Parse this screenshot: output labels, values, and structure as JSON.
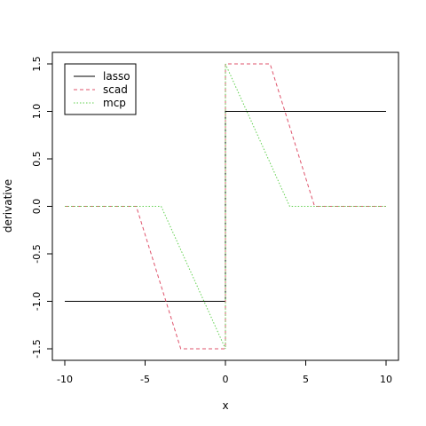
{
  "chart_data": {
    "type": "line",
    "title": "",
    "xlabel": "x",
    "ylabel": "derivative",
    "xlim": [
      -10,
      10
    ],
    "ylim": [
      -1.5,
      1.5
    ],
    "xticks": [
      -10,
      -5,
      0,
      5,
      10
    ],
    "yticks": [
      -1.5,
      -1.0,
      -0.5,
      0.0,
      0.5,
      1.0,
      1.5
    ],
    "xtick_labels": [
      "-10",
      "-5",
      "0",
      "5",
      "10"
    ],
    "ytick_labels": [
      "-1.5",
      "-1.0",
      "-0.5",
      "0.0",
      "0.5",
      "1.0",
      "1.5"
    ],
    "grid": false,
    "legend_position": "top-left",
    "series": [
      {
        "name": "lasso",
        "color": "#000000",
        "dash": "solid",
        "x": [
          -10,
          0,
          0,
          10
        ],
        "y": [
          -1,
          -1,
          1,
          1
        ]
      },
      {
        "name": "scad",
        "color": "#df536b",
        "dash": "dashed",
        "x": [
          -10,
          -5.55,
          -2.78,
          -1.5,
          0,
          0,
          1.5,
          2.78,
          5.55,
          10
        ],
        "y": [
          0,
          0,
          -1.5,
          -1.5,
          -1.5,
          1.5,
          1.5,
          1.5,
          0,
          0
        ]
      },
      {
        "name": "mcp",
        "color": "#61d04f",
        "dash": "dotted",
        "x": [
          -10,
          -4,
          0,
          0,
          4,
          10
        ],
        "y": [
          0,
          0,
          -1.5,
          1.5,
          0,
          0
        ]
      }
    ]
  }
}
